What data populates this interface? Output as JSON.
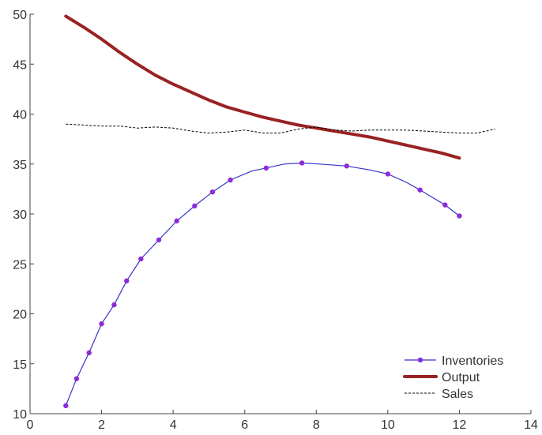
{
  "chart_data": {
    "type": "line",
    "title": "",
    "xlabel": "",
    "ylabel": "",
    "xlim": [
      0,
      14
    ],
    "ylim": [
      10,
      50
    ],
    "x_ticks": [
      "0",
      "2",
      "4",
      "6",
      "8",
      "10",
      "12",
      "14"
    ],
    "y_ticks": [
      "10",
      "15",
      "20",
      "25",
      "30",
      "35",
      "40",
      "45",
      "50"
    ],
    "grid": false,
    "legend_position": "bottom-right",
    "series": [
      {
        "name": "Inventories",
        "color": "#3333cc",
        "marker_color": "#8e2bd8",
        "style": "line-markers",
        "x": [
          1,
          1.3,
          1.65,
          2,
          2.35,
          2.7,
          3.1,
          3.6,
          4.1,
          4.6,
          5.1,
          5.6,
          6.2,
          6.6,
          7.1,
          7.6,
          8.1,
          8.85,
          9.5,
          10,
          10.5,
          10.9,
          11.6,
          12
        ],
        "y": [
          10.8,
          13.5,
          16.1,
          19.0,
          20.9,
          23.3,
          25.5,
          27.4,
          29.3,
          30.8,
          32.2,
          33.4,
          34.3,
          34.6,
          35.0,
          35.1,
          35.0,
          34.8,
          34.4,
          34.0,
          33.2,
          32.4,
          30.9,
          29.8
        ],
        "markers": [
          1,
          1.3,
          1.65,
          2,
          2.35,
          2.7,
          3.1,
          3.6,
          4.1,
          4.6,
          5.1,
          5.6,
          6.6,
          7.6,
          8.85,
          10,
          10.9,
          11.6,
          12
        ]
      },
      {
        "name": "Output",
        "color": "#992222",
        "style": "thick-line",
        "x": [
          1,
          1.5,
          2,
          2.5,
          3,
          3.5,
          4,
          4.5,
          5,
          5.5,
          6,
          6.5,
          7,
          7.5,
          8,
          8.5,
          9,
          9.5,
          10,
          10.5,
          11,
          11.5,
          12
        ],
        "y": [
          49.8,
          48.7,
          47.5,
          46.2,
          45.0,
          43.9,
          43.0,
          42.2,
          41.4,
          40.7,
          40.2,
          39.7,
          39.3,
          38.9,
          38.6,
          38.3,
          38.0,
          37.7,
          37.3,
          36.9,
          36.5,
          36.1,
          35.6
        ]
      },
      {
        "name": "Sales",
        "color": "#000000",
        "style": "dashed",
        "x": [
          1,
          1.5,
          2,
          2.5,
          3,
          3.5,
          4,
          4.5,
          5,
          5.5,
          6,
          6.5,
          7,
          7.5,
          8,
          8.5,
          9,
          9.5,
          10,
          10.5,
          11,
          11.5,
          12,
          12.5,
          13
        ],
        "y": [
          39.0,
          38.9,
          38.8,
          38.8,
          38.6,
          38.7,
          38.6,
          38.3,
          38.1,
          38.2,
          38.4,
          38.1,
          38.1,
          38.5,
          38.7,
          38.4,
          38.3,
          38.4,
          38.4,
          38.4,
          38.3,
          38.2,
          38.1,
          38.1,
          38.5
        ]
      }
    ]
  }
}
